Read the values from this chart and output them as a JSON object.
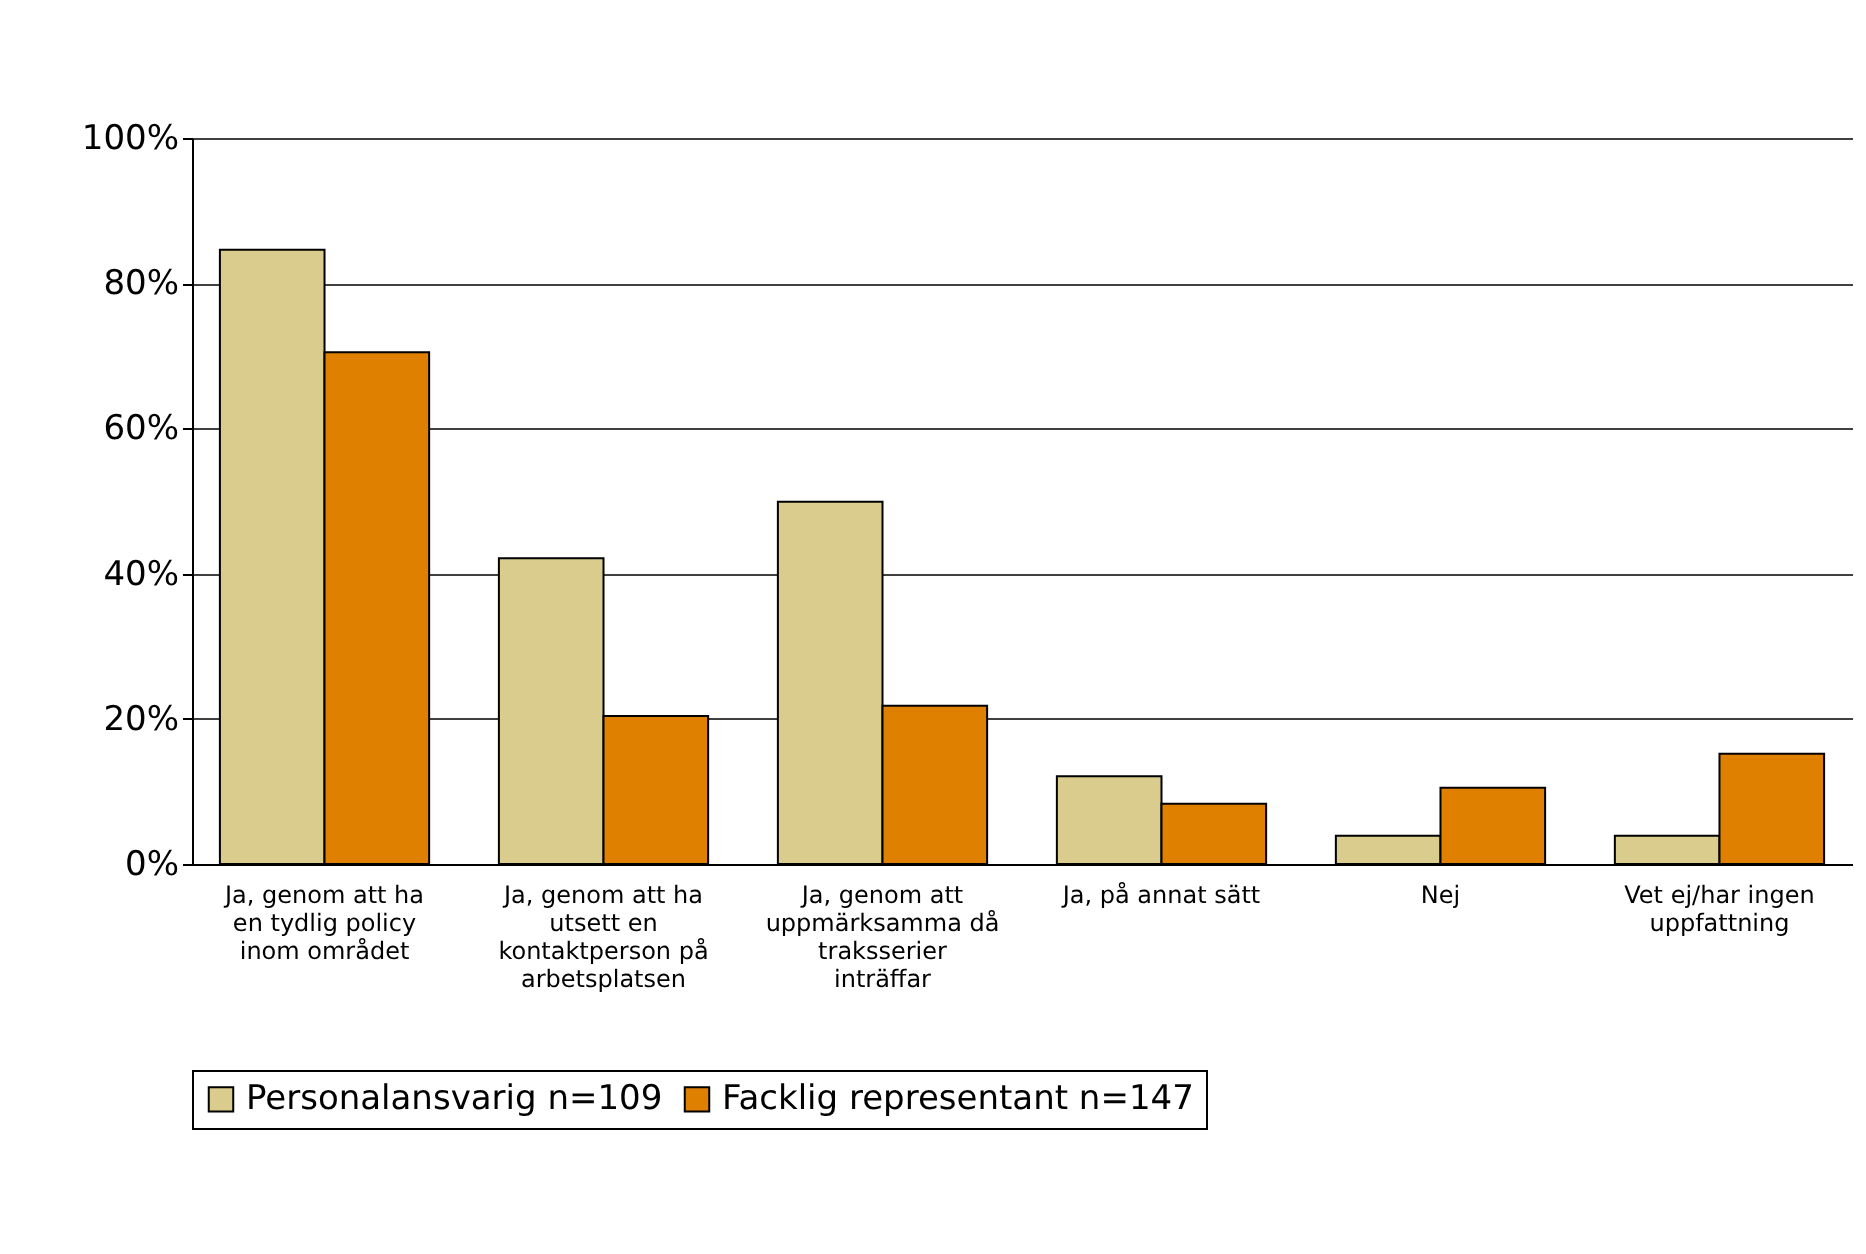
{
  "chart_data": {
    "type": "bar",
    "categories": [
      "Ja, genom att ha en tydlig policy inom området",
      "Ja, genom att ha utsett en kontaktperson på arbetsplatsen",
      "Ja, genom att uppmärksamma då traksserier inträffar",
      "Ja, på annat sätt",
      "Nej",
      "Vet ej/har ingen uppfattning"
    ],
    "series": [
      {
        "name": "Personalansvarig n=109",
        "color": "#d9cc8c",
        "values": [
          84.6,
          42.1,
          49.9,
          12.1,
          3.9,
          3.9
        ]
      },
      {
        "name": "Facklig representant n=147",
        "color": "#e08000",
        "values": [
          70.5,
          20.4,
          21.8,
          8.3,
          10.5,
          15.2
        ]
      }
    ],
    "ylim": [
      0,
      100
    ],
    "yticks": [
      {
        "value": 0,
        "label": "0%"
      },
      {
        "value": 20,
        "label": "20%"
      },
      {
        "value": 40,
        "label": "40%"
      },
      {
        "value": 60,
        "label": "60%"
      },
      {
        "value": 80,
        "label": "80%"
      },
      {
        "value": 100,
        "label": "100%"
      }
    ],
    "grid": "y",
    "legend": "bottom"
  }
}
